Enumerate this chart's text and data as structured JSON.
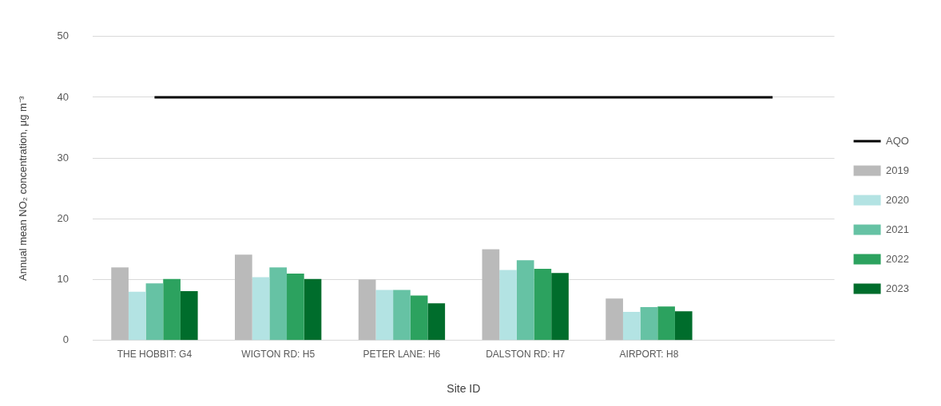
{
  "chart_data": {
    "type": "bar",
    "xlabel": "Site ID",
    "ylabel": "Annual mean NO₂ concentration, μg m⁻³",
    "categories": [
      "THE HOBBIT: G4",
      "WIGTON RD: H5",
      "PETER LANE: H6",
      "DALSTON RD: H7",
      "AIRPORT: H8",
      null
    ],
    "series": [
      {
        "name": "2019",
        "color": "#bababa",
        "values": [
          12.0,
          14.1,
          10.0,
          15.0,
          6.9,
          null
        ]
      },
      {
        "name": "2020",
        "color": "#b3e3e3",
        "values": [
          8.0,
          10.4,
          8.3,
          11.6,
          4.7,
          null
        ]
      },
      {
        "name": "2021",
        "color": "#66c2a4",
        "values": [
          9.4,
          12.0,
          8.3,
          13.2,
          5.5,
          null
        ]
      },
      {
        "name": "2022",
        "color": "#2ca25f",
        "values": [
          10.1,
          11.0,
          7.4,
          11.8,
          5.6,
          null
        ]
      },
      {
        "name": "2023",
        "color": "#006d2c",
        "values": [
          8.1,
          10.1,
          6.1,
          11.1,
          4.8,
          null
        ]
      },
      {
        "name": "AQO",
        "type": "line",
        "color": "#000000",
        "values": [
          40,
          40,
          40,
          40,
          40,
          40
        ]
      }
    ],
    "ylim": [
      0,
      50
    ],
    "yticks": [
      0,
      10,
      20,
      30,
      40,
      50
    ],
    "grid": "y",
    "legend": "right",
    "marker": "none"
  }
}
